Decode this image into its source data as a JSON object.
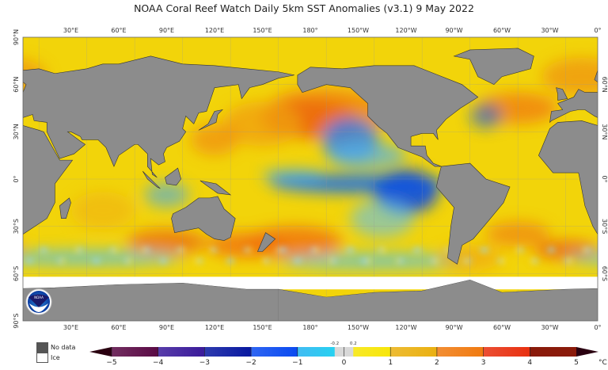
{
  "title": "NOAA Coral Reef Watch Daily 5km SST Anomalies  (v3.1)   9 May 2022",
  "map": {
    "projection": "equirectangular",
    "center_longitude": 200,
    "lon_labels": [
      "30°E",
      "60°E",
      "90°E",
      "120°E",
      "150°E",
      "180°",
      "150°W",
      "120°W",
      "90°W",
      "60°W",
      "30°W",
      "0°"
    ],
    "lat_labels_left": [
      "90°N",
      "60°N",
      "30°N",
      "0°",
      "30°S",
      "60°S",
      "90°S"
    ],
    "lat_labels_right": [
      "60°N",
      "30°N",
      "0°",
      "30°S",
      "60°S"
    ],
    "land_color": "#8c8c8c",
    "ice_color": "#ffffff"
  },
  "legend": {
    "no_data": "No data",
    "ice": "Ice",
    "no_data_color": "#555555",
    "ice_color": "#ffffff"
  },
  "colorbar": {
    "unit": "°C",
    "ticks": [
      "−5",
      "−4",
      "−3",
      "−2",
      "−1",
      "0",
      "1",
      "2",
      "3",
      "4",
      "5"
    ],
    "minor_labels": [
      "-0.2",
      "0.2"
    ],
    "range": [
      -5,
      5
    ],
    "colors": [
      "#5a0a45",
      "#3a1a9a",
      "#0818a0",
      "#0a4af0",
      "#20b0f0",
      "#d8d8d8",
      "#f7e60a",
      "#eab010",
      "#f07a10",
      "#e83010",
      "#8a1a0a"
    ]
  },
  "logo": "NOAA"
}
